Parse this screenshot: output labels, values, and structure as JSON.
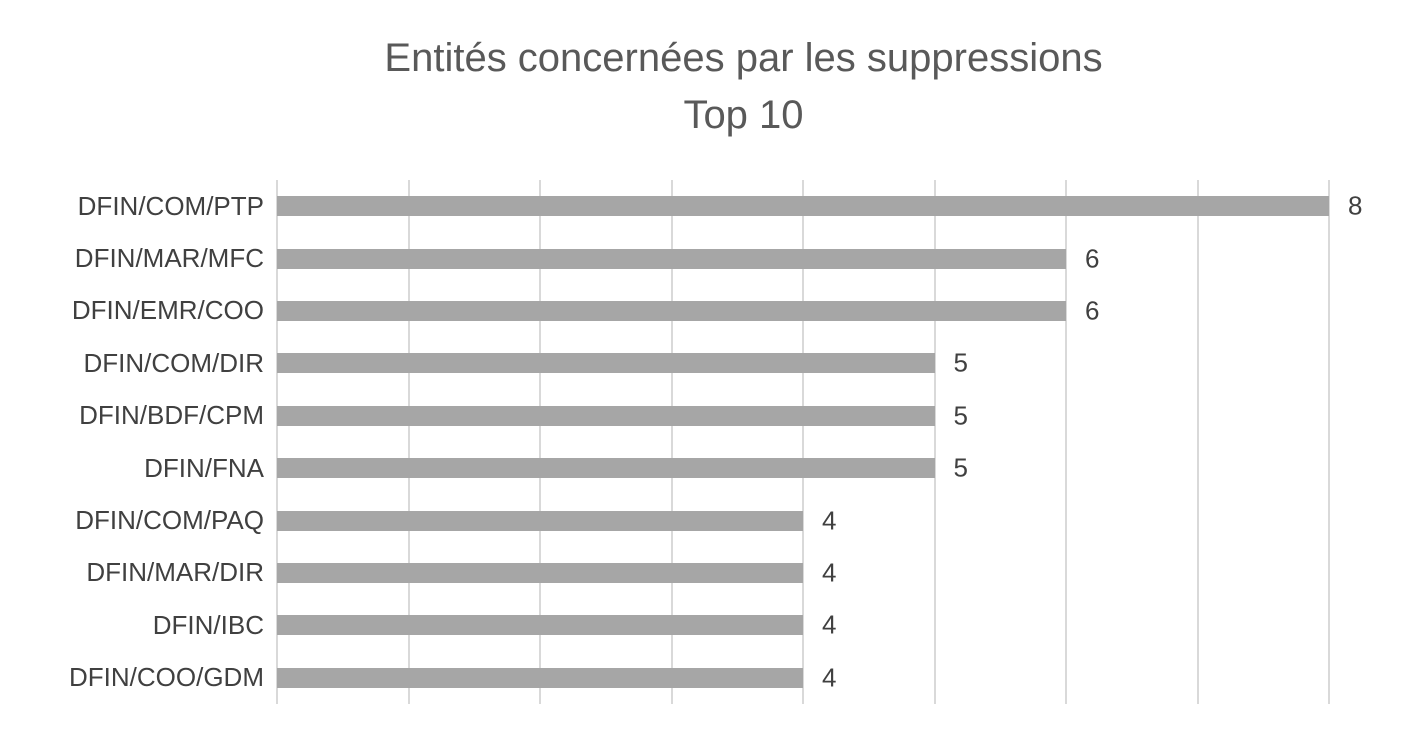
{
  "chart_data": {
    "type": "bar",
    "orientation": "horizontal",
    "title": "Entités concernées par les suppressions",
    "subtitle": "Top 10",
    "categories": [
      "DFIN/COM/PTP",
      "DFIN/MAR/MFC",
      "DFIN/EMR/COO",
      "DFIN/COM/DIR",
      "DFIN/BDF/CPM",
      "DFIN/FNA",
      "DFIN/COM/PAQ",
      "DFIN/MAR/DIR",
      "DFIN/IBC",
      "DFIN/COO/GDM"
    ],
    "values": [
      8,
      6,
      6,
      5,
      5,
      5,
      4,
      4,
      4,
      4
    ],
    "xlabel": "",
    "ylabel": "",
    "xlim": [
      0,
      8
    ],
    "gridline_step": 1,
    "grid": "vertical-major",
    "axis_tick_labels": "none",
    "legend": "none",
    "data_labels_position": "outside-end",
    "colors": {
      "bar": "#a6a6a6",
      "gridline": "#d9d9d9",
      "title_text": "#595959",
      "label_text": "#404040"
    }
  }
}
